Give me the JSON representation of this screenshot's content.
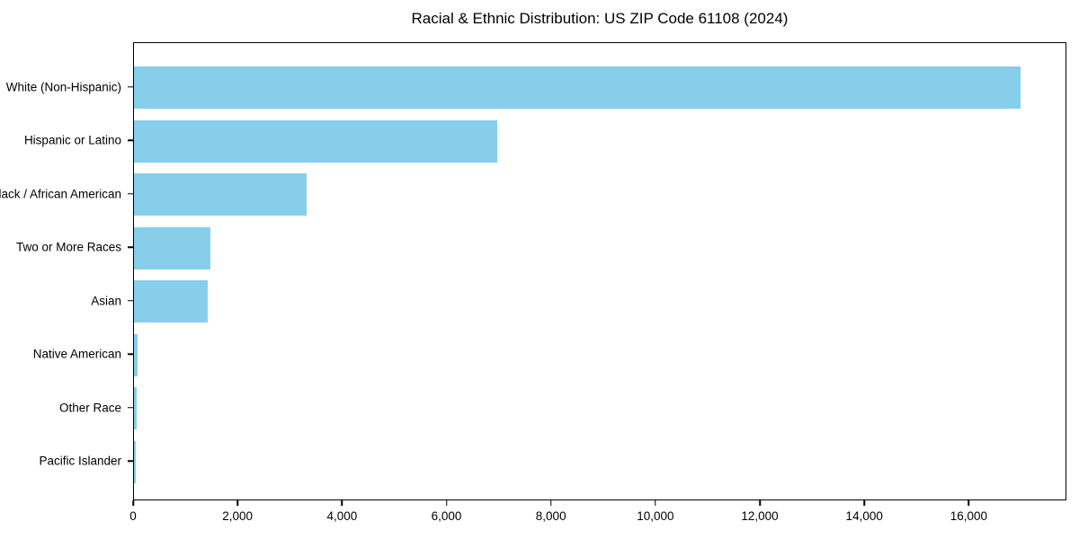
{
  "chart_data": {
    "type": "bar",
    "orientation": "horizontal",
    "title": "Racial & Ethnic Distribution: US ZIP Code 61108 (2024)",
    "categories": [
      "White (Non-Hispanic)",
      "Hispanic or Latino",
      "Black / African American",
      "Two or More Races",
      "Asian",
      "Native American",
      "Other Race",
      "Pacific Islander"
    ],
    "values": [
      17000,
      6960,
      3310,
      1470,
      1420,
      70,
      55,
      30
    ],
    "xlim": [
      0,
      17870
    ],
    "x_ticks": [
      0,
      2000,
      4000,
      6000,
      8000,
      10000,
      12000,
      14000,
      16000
    ],
    "x_tick_labels": [
      "0",
      "2,000",
      "4,000",
      "6,000",
      "8,000",
      "10,000",
      "12,000",
      "14,000",
      "16,000"
    ],
    "xlabel": "",
    "ylabel": "",
    "bar_color": "#87CEEB",
    "axis_color": "#000000",
    "text_color": "#000000",
    "background_color": "#FFFFFF",
    "grid": false,
    "legend_position": "none"
  }
}
